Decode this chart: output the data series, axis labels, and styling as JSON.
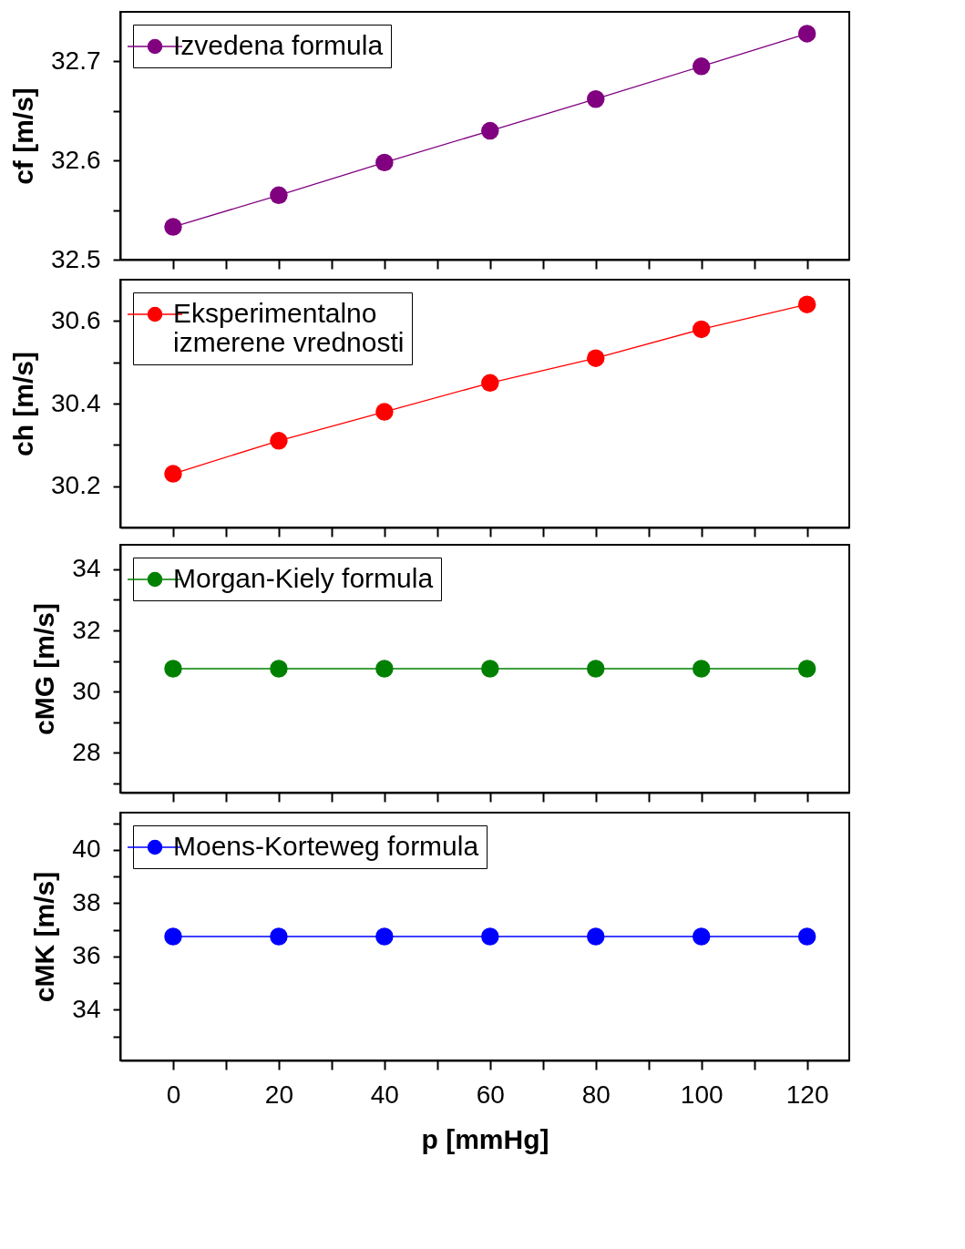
{
  "chart_data": [
    {
      "type": "line",
      "ylabel": "cf [m/s]",
      "x": [
        0,
        20,
        40,
        60,
        80,
        100,
        120
      ],
      "xlim": [
        -10,
        128
      ],
      "xticks": [
        0,
        {
          "value": 10,
          "label": null
        },
        20,
        {
          "value": 30,
          "label": null
        },
        40,
        {
          "value": 50,
          "label": null
        },
        60,
        {
          "value": 70,
          "label": null
        },
        80,
        {
          "value": 90,
          "label": null
        },
        100,
        {
          "value": 110,
          "label": null
        },
        120
      ],
      "ylim": [
        32.5,
        32.75
      ],
      "yticks": [
        32.5,
        {
          "value": 32.55,
          "label": null
        },
        32.6,
        {
          "value": 32.65,
          "label": null
        },
        32.7
      ],
      "tick_labels": "y",
      "marker": "circle",
      "line_style": "solid",
      "legend": "top left",
      "grid": false,
      "series": [
        {
          "name": "Izvedena formula",
          "color": "#800080",
          "values": [
            32.533,
            32.565,
            32.598,
            32.63,
            32.662,
            32.695,
            32.728
          ]
        }
      ]
    },
    {
      "type": "line",
      "ylabel": "ch [m/s]",
      "x": [
        0,
        20,
        40,
        60,
        80,
        100,
        120
      ],
      "xlim": [
        -10,
        128
      ],
      "xticks": [
        0,
        {
          "value": 10,
          "label": null
        },
        20,
        {
          "value": 30,
          "label": null
        },
        40,
        {
          "value": 50,
          "label": null
        },
        60,
        {
          "value": 70,
          "label": null
        },
        80,
        {
          "value": 90,
          "label": null
        },
        100,
        {
          "value": 110,
          "label": null
        },
        120
      ],
      "ylim": [
        30.1,
        30.7
      ],
      "yticks": [
        30.2,
        {
          "value": 30.3,
          "label": null
        },
        30.4,
        {
          "value": 30.5,
          "label": null
        },
        30.6
      ],
      "tick_labels": "y",
      "marker": "circle",
      "line_style": "solid",
      "legend": "top left",
      "grid": false,
      "series": [
        {
          "name": "Eksperimentalno\nizmerene vrednosti",
          "color": "#ff0000",
          "values": [
            30.23,
            30.31,
            30.38,
            30.45,
            30.51,
            30.58,
            30.64
          ]
        }
      ]
    },
    {
      "type": "line",
      "ylabel": "cMG [m/s]",
      "x": [
        0,
        20,
        40,
        60,
        80,
        100,
        120
      ],
      "xlim": [
        -10,
        128
      ],
      "xticks": [
        0,
        {
          "value": 10,
          "label": null
        },
        20,
        {
          "value": 30,
          "label": null
        },
        40,
        {
          "value": 50,
          "label": null
        },
        60,
        {
          "value": 70,
          "label": null
        },
        80,
        {
          "value": 90,
          "label": null
        },
        100,
        {
          "value": 110,
          "label": null
        },
        120
      ],
      "ylim": [
        26.7,
        34.8
      ],
      "yticks": [
        {
          "value": 27,
          "label": null
        },
        28,
        {
          "value": 29,
          "label": null
        },
        30,
        {
          "value": 31,
          "label": null
        },
        32,
        {
          "value": 33,
          "label": null
        },
        34
      ],
      "tick_labels": "y",
      "marker": "circle",
      "line_style": "solid",
      "legend": "top left",
      "grid": false,
      "series": [
        {
          "name": "Morgan-Kiely formula",
          "color": "#008000",
          "values": [
            30.75,
            30.75,
            30.75,
            30.75,
            30.75,
            30.75,
            30.75
          ]
        }
      ]
    },
    {
      "type": "line",
      "ylabel": "cMK [m/s]",
      "xlabel": "p [mmHg]",
      "x": [
        0,
        20,
        40,
        60,
        80,
        100,
        120
      ],
      "xlim": [
        -10,
        128
      ],
      "xticks": [
        0,
        {
          "value": 10,
          "label": null
        },
        20,
        {
          "value": 30,
          "label": null
        },
        40,
        {
          "value": 50,
          "label": null
        },
        60,
        {
          "value": 70,
          "label": null
        },
        80,
        {
          "value": 90,
          "label": null
        },
        100,
        {
          "value": 110,
          "label": null
        },
        120
      ],
      "ylim": [
        32.1,
        41.4
      ],
      "yticks": [
        {
          "value": 33,
          "label": null
        },
        34,
        {
          "value": 35,
          "label": null
        },
        36,
        {
          "value": 37,
          "label": null
        },
        38,
        {
          "value": 39,
          "label": null
        },
        40,
        {
          "value": 41,
          "label": null
        }
      ],
      "marker": "circle",
      "line_style": "solid",
      "legend": "top left",
      "grid": false,
      "series": [
        {
          "name": "Moens-Korteweg formula",
          "color": "#0000ff",
          "values": [
            36.75,
            36.75,
            36.75,
            36.75,
            36.75,
            36.75,
            36.75
          ]
        }
      ]
    }
  ]
}
